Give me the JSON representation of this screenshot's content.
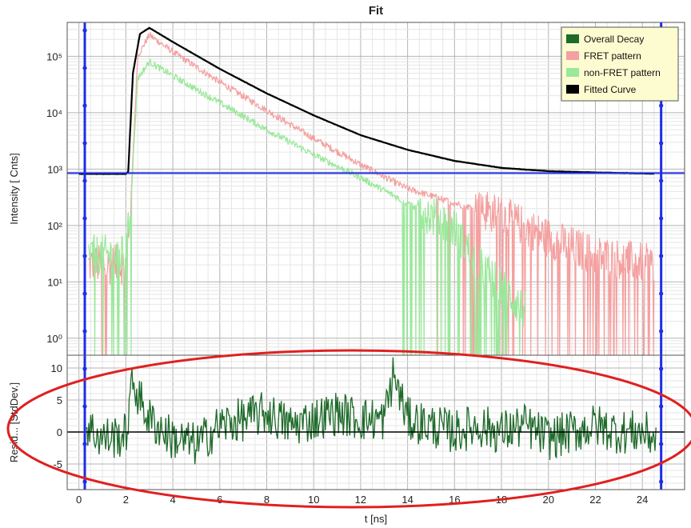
{
  "chart_data": [
    {
      "panel": "decay",
      "type": "line",
      "title": "Fit",
      "xlabel": "",
      "ylabel": "Intensity [ Cnts]",
      "yscale": "log",
      "xlim": [
        -0.5,
        25.8
      ],
      "ylim": [
        0.5,
        400000
      ],
      "yticks": [
        {
          "value": 1,
          "label": "10⁰"
        },
        {
          "value": 10,
          "label": "10¹"
        },
        {
          "value": 100,
          "label": "10²"
        },
        {
          "value": 1000,
          "label": "10³"
        },
        {
          "value": 10000,
          "label": "10⁴"
        },
        {
          "value": 100000,
          "label": "10⁵"
        }
      ],
      "grid": true,
      "legend_position": "top-right",
      "fit_range": [
        0.25,
        24.8
      ],
      "horizontal_marker": 850,
      "series": [
        {
          "name": "Overall Decay",
          "color": "#1e6b2a",
          "x": [
            0.0,
            2.0,
            2.1,
            2.3,
            2.6,
            3.0,
            4.0,
            6.0,
            8.0,
            10.0,
            12.0,
            14.0,
            16.0,
            18.0,
            20.0,
            22.0,
            24.5
          ],
          "y": [
            820,
            820,
            900,
            50000,
            250000,
            320000,
            180000,
            60000,
            22000,
            9000,
            4000,
            2200,
            1400,
            1050,
            920,
            870,
            830
          ]
        },
        {
          "name": "FRET pattern",
          "color": "#f4a0a0",
          "x": [
            0.4,
            2.0,
            2.2,
            2.5,
            3.0,
            4.0,
            6.0,
            8.0,
            10.0,
            12.0,
            14.0,
            16.0,
            18.0,
            20.0,
            22.0,
            24.5
          ],
          "y": [
            20,
            20,
            200,
            100000,
            240000,
            120000,
            35000,
            11000,
            3500,
            1200,
            450,
            250,
            150,
            60,
            30,
            20
          ]
        },
        {
          "name": "non-FRET pattern",
          "color": "#9ae89a",
          "x": [
            0.4,
            2.0,
            2.2,
            2.5,
            3.0,
            4.0,
            6.0,
            8.0,
            10.0,
            12.0,
            14.0,
            16.0,
            17.0,
            18.0,
            19.0
          ],
          "y": [
            30,
            30,
            200,
            40000,
            80000,
            45000,
            15000,
            5000,
            1800,
            700,
            250,
            90,
            20,
            8,
            3
          ]
        },
        {
          "name": "Fitted Curve",
          "color": "#000000",
          "x": [
            0.0,
            2.0,
            2.1,
            2.3,
            2.6,
            3.0,
            4.0,
            6.0,
            8.0,
            10.0,
            12.0,
            14.0,
            16.0,
            18.0,
            20.0,
            22.0,
            24.5
          ],
          "y": [
            820,
            820,
            900,
            50000,
            250000,
            320000,
            180000,
            60000,
            22000,
            9000,
            4000,
            2200,
            1400,
            1050,
            920,
            870,
            830
          ]
        }
      ]
    },
    {
      "panel": "residuals",
      "type": "line",
      "xlabel": "t [ns]",
      "ylabel": "Resid... [StdDev.]",
      "xlim": [
        -0.5,
        25.8
      ],
      "ylim": [
        -9,
        12
      ],
      "xticks": [
        0,
        2,
        4,
        6,
        8,
        10,
        12,
        14,
        16,
        18,
        20,
        22,
        24
      ],
      "yticks": [
        -5,
        0,
        5,
        10
      ],
      "grid": true,
      "series": [
        {
          "name": "Residuals",
          "color": "#1e6b2a",
          "x": [
            0.3,
            1.0,
            2.0,
            2.3,
            2.6,
            3.0,
            4.0,
            5.0,
            6.0,
            7.0,
            8.0,
            9.0,
            10.0,
            11.0,
            12.0,
            13.0,
            13.4,
            14.0,
            15.0,
            16.0,
            17.0,
            18.0,
            19.0,
            20.0,
            21.0,
            22.0,
            23.0,
            24.0,
            24.6
          ],
          "y": [
            1,
            -1,
            -0.5,
            8,
            5,
            2,
            -1,
            -2,
            1,
            2,
            3,
            1,
            2,
            3,
            2,
            2,
            9,
            2,
            1,
            0,
            1,
            0,
            1,
            -1,
            0,
            1,
            0,
            0,
            -1
          ]
        }
      ]
    }
  ],
  "annotation": {
    "shape": "ellipse",
    "color": "#e02020"
  }
}
